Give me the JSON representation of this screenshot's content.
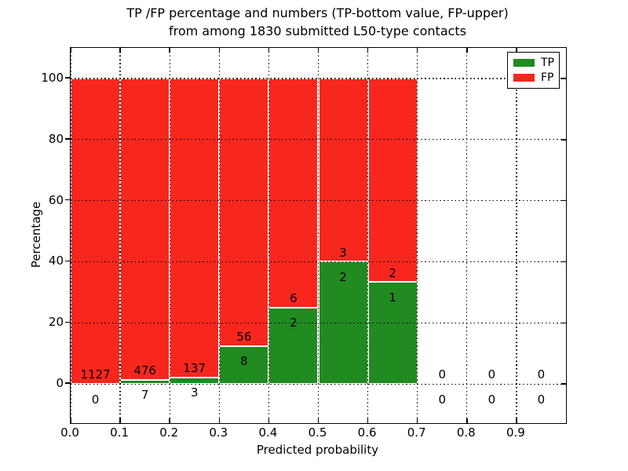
{
  "chart_data": {
    "type": "bar",
    "stacked_percentage": true,
    "title_line1": "TP /FP percentage and numbers (TP-bottom value, FP-upper)",
    "title_line2": "from among 1830 submitted L50-type contacts",
    "total_submitted": 1830,
    "xlabel": "Predicted probability",
    "ylabel": "Percentage",
    "xlim": [
      0.0,
      1.0
    ],
    "ylim": [
      -12.8,
      110
    ],
    "bin_width": 0.1,
    "grid": true,
    "x_tick_labels": [
      "0.0",
      "0.1",
      "0.2",
      "0.3",
      "0.4",
      "0.5",
      "0.6",
      "0.7",
      "0.8",
      "0.9"
    ],
    "y_tick_values": [
      0,
      20,
      40,
      60,
      80,
      100
    ],
    "y_tick_labels": [
      "0",
      "20",
      "40",
      "60",
      "80",
      "100"
    ],
    "bins": [
      {
        "x_start": 0.0,
        "tp": 0,
        "fp": 1127,
        "tp_pct": 0.0,
        "fp_pct": 100.0
      },
      {
        "x_start": 0.1,
        "tp": 7,
        "fp": 476,
        "tp_pct": 1.45,
        "fp_pct": 98.55
      },
      {
        "x_start": 0.2,
        "tp": 3,
        "fp": 137,
        "tp_pct": 2.14,
        "fp_pct": 97.86
      },
      {
        "x_start": 0.3,
        "tp": 8,
        "fp": 56,
        "tp_pct": 12.5,
        "fp_pct": 87.5
      },
      {
        "x_start": 0.4,
        "tp": 2,
        "fp": 6,
        "tp_pct": 25.0,
        "fp_pct": 75.0
      },
      {
        "x_start": 0.5,
        "tp": 2,
        "fp": 3,
        "tp_pct": 40.0,
        "fp_pct": 60.0
      },
      {
        "x_start": 0.6,
        "tp": 1,
        "fp": 2,
        "tp_pct": 33.33,
        "fp_pct": 66.67
      },
      {
        "x_start": 0.7,
        "tp": 0,
        "fp": 0,
        "tp_pct": 0,
        "fp_pct": 0
      },
      {
        "x_start": 0.8,
        "tp": 0,
        "fp": 0,
        "tp_pct": 0,
        "fp_pct": 0
      },
      {
        "x_start": 0.9,
        "tp": 0,
        "fp": 0,
        "tp_pct": 0,
        "fp_pct": 0
      }
    ],
    "legend": {
      "position": "upper right",
      "entries": [
        {
          "label": "TP",
          "series": "tp"
        },
        {
          "label": "FP",
          "series": "fp"
        }
      ]
    },
    "colors": {
      "tp": "#218a21",
      "fp": "#f8271e",
      "grid": "#000000",
      "text": "#000000",
      "background": "#ffffff"
    }
  }
}
